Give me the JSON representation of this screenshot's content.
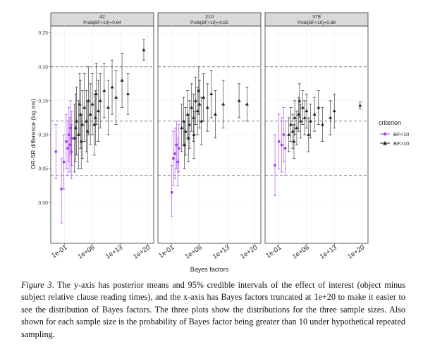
{
  "chart_data": {
    "type": "scatter",
    "facet_by": "sample size",
    "facets": [
      {
        "title": "42",
        "subtitle": "Prob(BF>10)=0.64"
      },
      {
        "title": "210",
        "subtitle": "Prob(BF>10)=0.82"
      },
      {
        "title": "378",
        "subtitle": "Prob(BF>10)=0.88"
      }
    ],
    "xlabel": "Bayes factors",
    "ylabel": "OR-SR difference (log ms)",
    "x_scale": "log10",
    "x_ticks": [
      {
        "value": -1,
        "label": "1e-01"
      },
      {
        "value": 6,
        "label": "1e+06"
      },
      {
        "value": 13,
        "label": "1e+13"
      },
      {
        "value": 20,
        "label": "1e+20"
      }
    ],
    "xlim": [
      -4.5,
      21.5
    ],
    "ylim": [
      -0.06,
      0.26
    ],
    "y_ticks": [
      0.0,
      0.05,
      0.1,
      0.15,
      0.2,
      0.25
    ],
    "y_tick_labels": [
      "0.00",
      "0.05",
      "0.10",
      "0.15",
      "0.20",
      "0.25"
    ],
    "hlines": [
      0.04,
      0.12,
      0.2
    ],
    "legend": {
      "title": "criterion",
      "position": "right",
      "entries": [
        {
          "label": "BF<10",
          "color": "#a23ee8",
          "shape": "circle"
        },
        {
          "label": "BF>10",
          "color": "#222222",
          "shape": "triangle"
        }
      ]
    },
    "series": [
      {
        "name": "BF<10",
        "color": "#a23ee8",
        "shape": "circle",
        "points": [
          [
            [
              -3.2,
              0.075,
              0.035,
              0.115
            ],
            [
              -1.8,
              0.02,
              -0.03,
              0.065
            ],
            [
              -1.2,
              0.06,
              0.02,
              0.1
            ],
            [
              -0.6,
              0.09,
              0.05,
              0.13
            ],
            [
              -0.2,
              0.08,
              0.04,
              0.12
            ],
            [
              0.1,
              0.1,
              0.06,
              0.14
            ],
            [
              0.3,
              0.085,
              0.045,
              0.125
            ],
            [
              0.5,
              0.11,
              0.07,
              0.15
            ],
            [
              0.7,
              0.075,
              0.035,
              0.115
            ],
            [
              0.8,
              0.095,
              0.055,
              0.135
            ]
          ],
          [
            [
              -1.0,
              0.015,
              -0.02,
              0.055
            ],
            [
              -0.6,
              0.065,
              0.025,
              0.105
            ],
            [
              -0.2,
              0.072,
              0.035,
              0.11
            ],
            [
              0.2,
              0.085,
              0.05,
              0.12
            ],
            [
              0.5,
              0.06,
              0.025,
              0.095
            ],
            [
              0.8,
              0.08,
              0.045,
              0.115
            ]
          ],
          [
            [
              -2.0,
              0.055,
              0.01,
              0.1
            ],
            [
              -1.0,
              0.09,
              0.05,
              0.13
            ],
            [
              -0.3,
              0.085,
              0.045,
              0.125
            ],
            [
              0.2,
              0.1,
              0.06,
              0.14
            ],
            [
              0.6,
              0.08,
              0.04,
              0.12
            ]
          ]
        ]
      },
      {
        "name": "BF>10",
        "color": "#222222",
        "shape": "triangle",
        "points": [
          [
            [
              1.5,
              0.095,
              0.045,
              0.145
            ],
            [
              2.0,
              0.12,
              0.07,
              0.17
            ],
            [
              2.5,
              0.1,
              0.05,
              0.15
            ],
            [
              3.0,
              0.13,
              0.08,
              0.18
            ],
            [
              3.5,
              0.115,
              0.065,
              0.165
            ],
            [
              4.0,
              0.14,
              0.09,
              0.19
            ],
            [
              4.5,
              0.12,
              0.075,
              0.165
            ],
            [
              5.0,
              0.15,
              0.1,
              0.2
            ],
            [
              5.5,
              0.13,
              0.085,
              0.175
            ],
            [
              6.0,
              0.145,
              0.1,
              0.19
            ],
            [
              6.5,
              0.115,
              0.07,
              0.16
            ],
            [
              7.0,
              0.16,
              0.115,
              0.205
            ],
            [
              7.5,
              0.135,
              0.09,
              0.18
            ],
            [
              8.0,
              0.15,
              0.11,
              0.19
            ],
            [
              9.0,
              0.165,
              0.125,
              0.205
            ],
            [
              10.0,
              0.14,
              0.1,
              0.18
            ],
            [
              11.0,
              0.17,
              0.13,
              0.21
            ],
            [
              12.0,
              0.155,
              0.115,
              0.195
            ],
            [
              13.5,
              0.18,
              0.14,
              0.22
            ],
            [
              15.0,
              0.16,
              0.13,
              0.19
            ],
            [
              19.0,
              0.225,
              0.21,
              0.24
            ],
            [
              3.2,
              0.09,
              0.05,
              0.13
            ],
            [
              4.8,
              0.105,
              0.06,
              0.15
            ],
            [
              6.8,
              0.125,
              0.085,
              0.165
            ],
            [
              2.8,
              0.145,
              0.1,
              0.19
            ],
            [
              1.8,
              0.11,
              0.06,
              0.16
            ]
          ],
          [
            [
              1.5,
              0.11,
              0.075,
              0.145
            ],
            [
              2.0,
              0.12,
              0.085,
              0.155
            ],
            [
              2.5,
              0.105,
              0.07,
              0.14
            ],
            [
              3.0,
              0.13,
              0.095,
              0.165
            ],
            [
              3.5,
              0.115,
              0.08,
              0.15
            ],
            [
              4.0,
              0.14,
              0.105,
              0.175
            ],
            [
              4.5,
              0.125,
              0.09,
              0.16
            ],
            [
              5.0,
              0.15,
              0.115,
              0.185
            ],
            [
              5.5,
              0.135,
              0.1,
              0.17
            ],
            [
              6.0,
              0.145,
              0.11,
              0.18
            ],
            [
              6.5,
              0.12,
              0.085,
              0.155
            ],
            [
              7.0,
              0.155,
              0.12,
              0.19
            ],
            [
              8.0,
              0.14,
              0.105,
              0.175
            ],
            [
              9.0,
              0.16,
              0.125,
              0.195
            ],
            [
              10.0,
              0.13,
              0.095,
              0.165
            ],
            [
              12.0,
              0.145,
              0.11,
              0.18
            ],
            [
              16.0,
              0.15,
              0.125,
              0.175
            ],
            [
              18.0,
              0.145,
              0.12,
              0.17
            ],
            [
              3.2,
              0.095,
              0.06,
              0.13
            ],
            [
              4.6,
              0.1,
              0.065,
              0.135
            ],
            [
              2.2,
              0.085,
              0.05,
              0.12
            ],
            [
              5.8,
              0.165,
              0.13,
              0.2
            ]
          ],
          [
            [
              1.5,
              0.1,
              0.075,
              0.125
            ],
            [
              2.0,
              0.115,
              0.09,
              0.14
            ],
            [
              2.5,
              0.105,
              0.08,
              0.13
            ],
            [
              3.0,
              0.125,
              0.1,
              0.15
            ],
            [
              3.5,
              0.11,
              0.085,
              0.135
            ],
            [
              4.0,
              0.13,
              0.105,
              0.155
            ],
            [
              4.5,
              0.12,
              0.095,
              0.145
            ],
            [
              5.0,
              0.14,
              0.115,
              0.165
            ],
            [
              5.5,
              0.125,
              0.1,
              0.15
            ],
            [
              6.0,
              0.135,
              0.11,
              0.16
            ],
            [
              7.0,
              0.12,
              0.095,
              0.145
            ],
            [
              8.0,
              0.13,
              0.105,
              0.155
            ],
            [
              9.0,
              0.14,
              0.115,
              0.165
            ],
            [
              10.0,
              0.115,
              0.09,
              0.14
            ],
            [
              12.0,
              0.125,
              0.1,
              0.15
            ],
            [
              13.0,
              0.135,
              0.11,
              0.16
            ],
            [
              19.5,
              0.143,
              0.138,
              0.148
            ],
            [
              2.8,
              0.09,
              0.065,
              0.115
            ],
            [
              6.5,
              0.1,
              0.075,
              0.125
            ],
            [
              4.2,
              0.15,
              0.125,
              0.175
            ]
          ]
        ]
      }
    ]
  },
  "caption": {
    "label": "Figure 3",
    "text": ". The y-axis has posterior means and 95% credible intervals of the effect of interest (object minus subject relative clause reading times), and the x-axis has Bayes factors truncated at 1e+20 to make it easier to see the distribution of Bayes factors. The three plots show the distributions for the three sample sizes. Also shown for each sample size is the probability of Bayes factor being greater than 10 under hypothetical repeated sampling."
  }
}
